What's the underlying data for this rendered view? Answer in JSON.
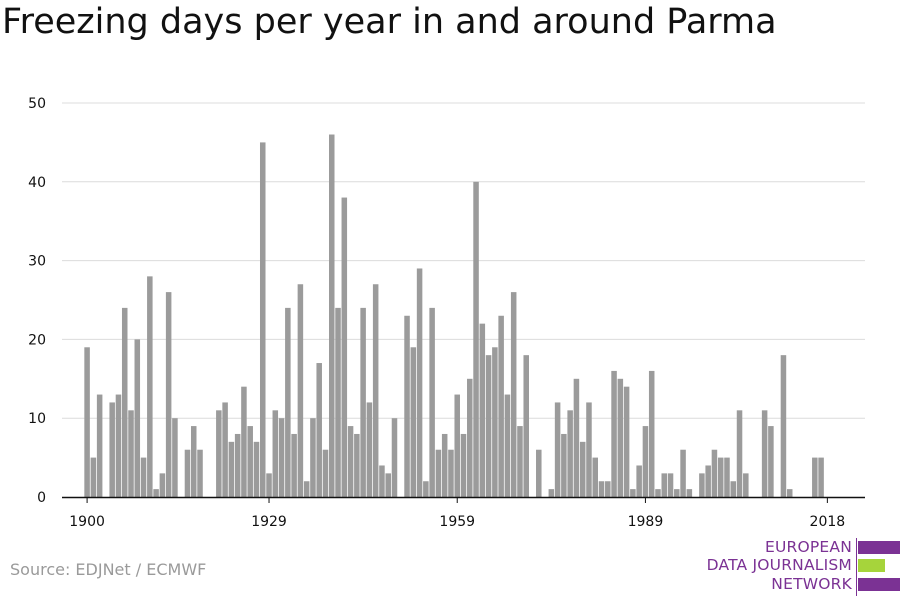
{
  "colors": {
    "bar": "#9b9b9b",
    "grid": "#dcdcdc",
    "axis": "#111111",
    "logo_purple": "#7b3294",
    "logo_green": "#a6d43b"
  },
  "source": "Source: EDJNet / ECMWF",
  "logo": {
    "line1": "EUROPEAN",
    "line2": "DATA JOURNALISM",
    "line3": "NETWORK"
  },
  "chart_data": {
    "type": "bar",
    "title": "Freezing days per year in and around Parma",
    "xlabel": "",
    "ylabel": "",
    "ylim": [
      0,
      50
    ],
    "yticks": [
      0,
      10,
      20,
      30,
      40,
      50
    ],
    "xticks": [
      "1900",
      "1929",
      "1959",
      "1989",
      "2018"
    ],
    "xlim": [
      1896,
      2024
    ],
    "grid": true,
    "x": [
      1900,
      1901,
      1902,
      1903,
      1904,
      1905,
      1906,
      1907,
      1908,
      1909,
      1910,
      1911,
      1912,
      1913,
      1914,
      1915,
      1916,
      1917,
      1918,
      1919,
      1920,
      1921,
      1922,
      1923,
      1924,
      1925,
      1926,
      1927,
      1928,
      1929,
      1930,
      1931,
      1932,
      1933,
      1934,
      1935,
      1936,
      1937,
      1938,
      1939,
      1940,
      1941,
      1942,
      1943,
      1944,
      1945,
      1946,
      1947,
      1948,
      1949,
      1950,
      1951,
      1952,
      1953,
      1954,
      1955,
      1956,
      1957,
      1958,
      1959,
      1960,
      1961,
      1962,
      1963,
      1964,
      1965,
      1966,
      1967,
      1968,
      1969,
      1970,
      1971,
      1972,
      1973,
      1974,
      1975,
      1976,
      1977,
      1978,
      1979,
      1980,
      1981,
      1982,
      1983,
      1984,
      1985,
      1986,
      1987,
      1988,
      1989,
      1990,
      1991,
      1992,
      1993,
      1994,
      1995,
      1996,
      1997,
      1998,
      1999,
      2000,
      2001,
      2002,
      2003,
      2004,
      2005,
      2006,
      2007,
      2008,
      2009,
      2010,
      2011,
      2012,
      2013,
      2014,
      2015,
      2016,
      2017,
      2018
    ],
    "values": [
      19,
      5,
      13,
      0,
      12,
      13,
      24,
      11,
      20,
      5,
      28,
      1,
      3,
      26,
      10,
      0,
      6,
      9,
      6,
      0,
      0,
      11,
      12,
      7,
      8,
      14,
      9,
      7,
      45,
      3,
      11,
      10,
      24,
      8,
      27,
      2,
      10,
      17,
      6,
      46,
      24,
      38,
      9,
      8,
      24,
      12,
      27,
      4,
      3,
      10,
      0,
      23,
      19,
      29,
      2,
      24,
      6,
      8,
      6,
      13,
      8,
      15,
      40,
      22,
      18,
      19,
      23,
      13,
      26,
      9,
      18,
      0,
      6,
      0,
      1,
      12,
      8,
      11,
      15,
      7,
      12,
      5,
      2,
      2,
      16,
      15,
      14,
      1,
      4,
      9,
      16,
      1,
      3,
      3,
      1,
      6,
      1,
      0,
      3,
      4,
      6,
      5,
      5,
      2,
      11,
      3,
      0,
      0,
      11,
      9,
      0,
      18,
      1,
      0,
      0,
      0,
      5,
      5,
      0
    ]
  }
}
